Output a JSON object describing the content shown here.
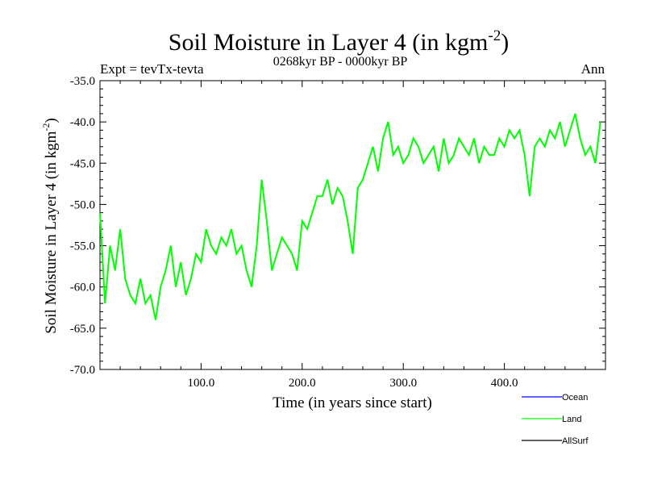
{
  "chart_data": {
    "type": "line",
    "title": "Soil Moisture in Layer 4 (in kgm",
    "title_sup": "-2",
    "title_close": ")",
    "subtitle": "0268kyr BP - 0000kyr BP",
    "left_note": "Expt = tevTx-tevta",
    "right_note": "Ann",
    "xlabel": "Time (in years since start)",
    "ylabel": "Soil Moisture in Layer 4 (in kgm",
    "ylabel_sup": "-2",
    "ylabel_close": ")",
    "xlim": [
      0,
      500
    ],
    "ylim": [
      -70,
      -35
    ],
    "x_ticks": [
      100,
      200,
      300,
      400
    ],
    "x_tick_labels": [
      "100.0",
      "200.0",
      "300.0",
      "400.0"
    ],
    "y_ticks": [
      -70,
      -65,
      -60,
      -55,
      -50,
      -45,
      -40,
      -35
    ],
    "y_tick_labels": [
      "-70.0",
      "-65.0",
      "-60.0",
      "-55.0",
      "-50.0",
      "-45.0",
      "-40.0",
      "-35.0"
    ],
    "legend": [
      {
        "name": "Ocean",
        "color": "#0000ff"
      },
      {
        "name": "Land",
        "color": "#00ff00"
      },
      {
        "name": "AllSurf",
        "color": "#000000"
      }
    ],
    "legend_position": "bottom-right",
    "series": [
      {
        "name": "Land",
        "color": "#00ff00",
        "x": [
          0,
          5,
          10,
          15,
          20,
          25,
          30,
          35,
          40,
          45,
          50,
          55,
          60,
          65,
          70,
          75,
          80,
          85,
          90,
          95,
          100,
          105,
          110,
          115,
          120,
          125,
          130,
          135,
          140,
          145,
          150,
          155,
          160,
          165,
          170,
          175,
          180,
          185,
          190,
          195,
          200,
          205,
          210,
          215,
          220,
          225,
          230,
          235,
          240,
          245,
          250,
          255,
          260,
          265,
          270,
          275,
          280,
          285,
          290,
          295,
          300,
          305,
          310,
          315,
          320,
          325,
          330,
          335,
          340,
          345,
          350,
          355,
          360,
          365,
          370,
          375,
          380,
          385,
          390,
          395,
          400,
          405,
          410,
          415,
          420,
          425,
          430,
          435,
          440,
          445,
          450,
          455,
          460,
          465,
          470,
          475,
          480,
          485,
          490,
          495
        ],
        "values": [
          -51,
          -62,
          -55,
          -58,
          -53,
          -59,
          -61,
          -62,
          -59,
          -62,
          -61,
          -64,
          -60,
          -58,
          -55,
          -60,
          -57,
          -61,
          -59,
          -56,
          -57,
          -53,
          -55,
          -56,
          -54,
          -55,
          -53,
          -56,
          -55,
          -58,
          -60,
          -55,
          -47,
          -52,
          -58,
          -56,
          -54,
          -55,
          -56,
          -58,
          -52,
          -53,
          -51,
          -49,
          -49,
          -47,
          -50,
          -48,
          -49,
          -52,
          -56,
          -48,
          -47,
          -45,
          -43,
          -46,
          -42,
          -40,
          -44,
          -43,
          -45,
          -44,
          -42,
          -43,
          -45,
          -44,
          -43,
          -46,
          -42,
          -45,
          -44,
          -42,
          -43,
          -44,
          -42,
          -45,
          -43,
          -44,
          -44,
          -42,
          -43,
          -41,
          -42,
          -41,
          -44,
          -49,
          -43,
          -42,
          -43,
          -41,
          -42,
          -40,
          -43,
          -41,
          -39,
          -42,
          -44,
          -43,
          -45,
          -40
        ]
      }
    ]
  }
}
